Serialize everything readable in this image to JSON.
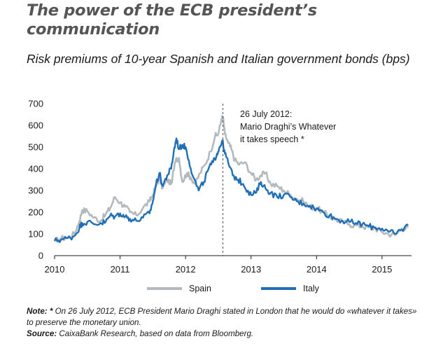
{
  "title": "The power of the ECB president’s communication",
  "subtitle": "Risk premiums of 10-year Spanish and Italian government bonds (bps)",
  "annotation": {
    "line1": "26 July 2012:",
    "line2": "Mario Draghi’s Whatever",
    "line3": "it takes speech *",
    "date": 2012.57
  },
  "notes": {
    "note_label": "Note: ",
    "note_star": "* ",
    "note_text": "On 26 July 2012, ECB President Mario Draghi stated in London that he would do «whatever it takes» to preserve the monetary union.",
    "source_label": "Source: ",
    "source_text": "CaixaBank Research, based on data from Bloomberg."
  },
  "colors": {
    "spain": "#b3b9bd",
    "italy": "#1e6fb8",
    "axis": "#1a1a1a",
    "annotation_line": "#555555"
  },
  "chart_data": {
    "type": "line",
    "xlim": [
      2010,
      2015.45
    ],
    "ylim": [
      0,
      700
    ],
    "xticks": [
      2010,
      2011,
      2012,
      2013,
      2014,
      2015
    ],
    "yticks": [
      0,
      100,
      200,
      300,
      400,
      500,
      600,
      700
    ],
    "grid": false,
    "legend_position": "bottom",
    "series": [
      {
        "name": "Spain",
        "color": "#b3b9bd",
        "points": [
          [
            2010.0,
            65
          ],
          [
            2010.1,
            80
          ],
          [
            2010.2,
            82
          ],
          [
            2010.3,
            100
          ],
          [
            2010.38,
            160
          ],
          [
            2010.42,
            210
          ],
          [
            2010.5,
            205
          ],
          [
            2010.6,
            175
          ],
          [
            2010.7,
            160
          ],
          [
            2010.78,
            190
          ],
          [
            2010.85,
            220
          ],
          [
            2010.92,
            270
          ],
          [
            2011.0,
            245
          ],
          [
            2011.08,
            225
          ],
          [
            2011.15,
            200
          ],
          [
            2011.25,
            185
          ],
          [
            2011.35,
            220
          ],
          [
            2011.45,
            250
          ],
          [
            2011.5,
            280
          ],
          [
            2011.55,
            320
          ],
          [
            2011.6,
            360
          ],
          [
            2011.65,
            310
          ],
          [
            2011.72,
            350
          ],
          [
            2011.78,
            330
          ],
          [
            2011.85,
            440
          ],
          [
            2011.9,
            450
          ],
          [
            2011.95,
            340
          ],
          [
            2012.02,
            380
          ],
          [
            2012.08,
            360
          ],
          [
            2012.15,
            330
          ],
          [
            2012.22,
            380
          ],
          [
            2012.3,
            420
          ],
          [
            2012.38,
            480
          ],
          [
            2012.45,
            550
          ],
          [
            2012.5,
            560
          ],
          [
            2012.55,
            630
          ],
          [
            2012.57,
            640
          ],
          [
            2012.6,
            560
          ],
          [
            2012.65,
            520
          ],
          [
            2012.7,
            490
          ],
          [
            2012.75,
            440
          ],
          [
            2012.82,
            420
          ],
          [
            2012.9,
            430
          ],
          [
            2013.0,
            380
          ],
          [
            2013.08,
            350
          ],
          [
            2013.15,
            370
          ],
          [
            2013.22,
            380
          ],
          [
            2013.3,
            330
          ],
          [
            2013.4,
            320
          ],
          [
            2013.5,
            300
          ],
          [
            2013.6,
            280
          ],
          [
            2013.7,
            260
          ],
          [
            2013.8,
            250
          ],
          [
            2013.9,
            225
          ],
          [
            2014.0,
            220
          ],
          [
            2014.1,
            200
          ],
          [
            2014.2,
            180
          ],
          [
            2014.3,
            165
          ],
          [
            2014.4,
            155
          ],
          [
            2014.5,
            145
          ],
          [
            2014.6,
            140
          ],
          [
            2014.7,
            135
          ],
          [
            2014.8,
            130
          ],
          [
            2014.9,
            125
          ],
          [
            2015.0,
            110
          ],
          [
            2015.1,
            100
          ],
          [
            2015.2,
            95
          ],
          [
            2015.3,
            125
          ],
          [
            2015.4,
            130
          ]
        ]
      },
      {
        "name": "Italy",
        "color": "#1e6fb8",
        "points": [
          [
            2010.0,
            68
          ],
          [
            2010.1,
            75
          ],
          [
            2010.2,
            80
          ],
          [
            2010.3,
            90
          ],
          [
            2010.38,
            130
          ],
          [
            2010.42,
            150
          ],
          [
            2010.5,
            155
          ],
          [
            2010.6,
            145
          ],
          [
            2010.7,
            150
          ],
          [
            2010.78,
            155
          ],
          [
            2010.85,
            185
          ],
          [
            2010.92,
            180
          ],
          [
            2011.0,
            195
          ],
          [
            2011.08,
            180
          ],
          [
            2011.15,
            170
          ],
          [
            2011.25,
            160
          ],
          [
            2011.35,
            175
          ],
          [
            2011.45,
            195
          ],
          [
            2011.5,
            250
          ],
          [
            2011.55,
            330
          ],
          [
            2011.6,
            380
          ],
          [
            2011.65,
            320
          ],
          [
            2011.72,
            370
          ],
          [
            2011.78,
            400
          ],
          [
            2011.82,
            480
          ],
          [
            2011.86,
            540
          ],
          [
            2011.9,
            490
          ],
          [
            2011.95,
            510
          ],
          [
            2012.0,
            500
          ],
          [
            2012.05,
            440
          ],
          [
            2012.12,
            360
          ],
          [
            2012.2,
            300
          ],
          [
            2012.28,
            340
          ],
          [
            2012.35,
            400
          ],
          [
            2012.42,
            430
          ],
          [
            2012.48,
            470
          ],
          [
            2012.52,
            500
          ],
          [
            2012.56,
            530
          ],
          [
            2012.6,
            470
          ],
          [
            2012.65,
            430
          ],
          [
            2012.72,
            370
          ],
          [
            2012.8,
            350
          ],
          [
            2012.88,
            330
          ],
          [
            2012.95,
            300
          ],
          [
            2013.0,
            280
          ],
          [
            2013.08,
            290
          ],
          [
            2013.15,
            340
          ],
          [
            2013.22,
            310
          ],
          [
            2013.3,
            290
          ],
          [
            2013.4,
            270
          ],
          [
            2013.5,
            280
          ],
          [
            2013.6,
            270
          ],
          [
            2013.7,
            250
          ],
          [
            2013.8,
            240
          ],
          [
            2013.9,
            230
          ],
          [
            2014.0,
            215
          ],
          [
            2014.1,
            200
          ],
          [
            2014.2,
            185
          ],
          [
            2014.3,
            170
          ],
          [
            2014.4,
            160
          ],
          [
            2014.5,
            155
          ],
          [
            2014.6,
            150
          ],
          [
            2014.7,
            145
          ],
          [
            2014.8,
            135
          ],
          [
            2014.9,
            130
          ],
          [
            2015.0,
            125
          ],
          [
            2015.1,
            110
          ],
          [
            2015.2,
            100
          ],
          [
            2015.3,
            120
          ],
          [
            2015.4,
            140
          ]
        ]
      }
    ]
  }
}
